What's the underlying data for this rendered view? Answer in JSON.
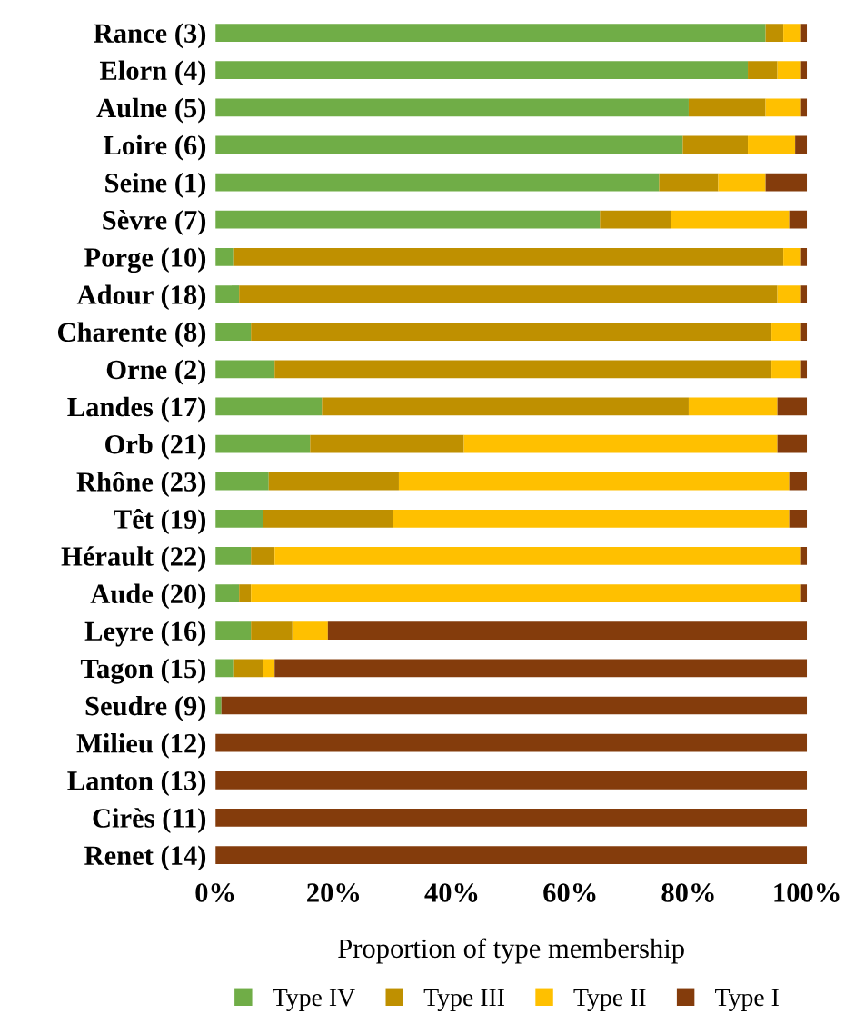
{
  "chart_data": {
    "type": "bar",
    "orientation": "horizontal",
    "stacked": true,
    "xlabel": "Proportion of type membership",
    "categories": [
      "Rance (3)",
      "Elorn (4)",
      "Aulne (5)",
      "Loire (6)",
      "Seine (1)",
      "Sèvre (7)",
      "Porge (10)",
      "Adour (18)",
      "Charente (8)",
      "Orne (2)",
      "Landes (17)",
      "Orb (21)",
      "Rhône (23)",
      "Têt (19)",
      "Hérault (22)",
      "Aude (20)",
      "Leyre (16)",
      "Tagon (15)",
      "Seudre (9)",
      "Milieu (12)",
      "Lanton (13)",
      "Cirès (11)",
      "Renet (14)"
    ],
    "series": [
      {
        "name": "Type IV",
        "color": "#70ad47",
        "values": [
          93,
          90,
          80,
          79,
          75,
          65,
          3,
          4,
          6,
          10,
          18,
          16,
          9,
          8,
          6,
          4,
          6,
          3,
          1,
          0,
          0,
          0,
          0
        ]
      },
      {
        "name": "Type III",
        "color": "#bf9000",
        "values": [
          3,
          5,
          13,
          11,
          10,
          12,
          93,
          91,
          88,
          84,
          62,
          26,
          22,
          22,
          4,
          2,
          7,
          5,
          0,
          0,
          0,
          0,
          0
        ]
      },
      {
        "name": "Type II",
        "color": "#ffc000",
        "values": [
          3,
          4,
          6,
          8,
          8,
          20,
          3,
          4,
          5,
          5,
          15,
          53,
          66,
          67,
          89,
          93,
          6,
          2,
          0,
          0,
          0,
          0,
          0
        ]
      },
      {
        "name": "Type I",
        "color": "#843c0c",
        "values": [
          1,
          1,
          1,
          2,
          7,
          3,
          1,
          1,
          1,
          1,
          5,
          5,
          3,
          3,
          1,
          1,
          81,
          90,
          99,
          100,
          100,
          100,
          100
        ]
      }
    ],
    "xlim": [
      0,
      100
    ],
    "xticks": [
      {
        "value": 0,
        "label": "0%"
      },
      {
        "value": 20,
        "label": "20%"
      },
      {
        "value": 40,
        "label": "40%"
      },
      {
        "value": 60,
        "label": "60%"
      },
      {
        "value": 80,
        "label": "80%"
      },
      {
        "value": 100,
        "label": "100%"
      }
    ],
    "grid": false,
    "legend": "bottom"
  }
}
